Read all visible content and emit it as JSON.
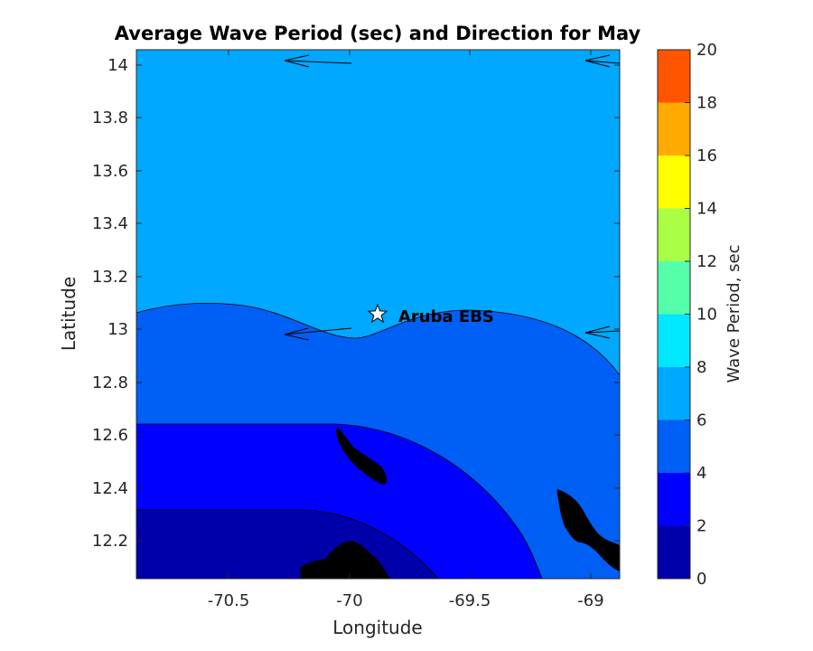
{
  "chart_data": {
    "type": "contour",
    "title": "Average Wave Period (sec) and Direction for May",
    "xlabel": "Longitude",
    "ylabel": "Latitude",
    "xlim": [
      -70.9,
      -68.9
    ],
    "ylim": [
      12.05,
      14.05
    ],
    "xticks": [
      -70.5,
      -70,
      -69.5,
      -69
    ],
    "xtick_labels": [
      "-70.5",
      "-70",
      "-69.5",
      "-69"
    ],
    "yticks": [
      12.2,
      12.4,
      12.6,
      12.8,
      13,
      13.2,
      13.4,
      13.6,
      13.8,
      14
    ],
    "ytick_labels": [
      "12.2",
      "12.4",
      "12.6",
      "12.8",
      "13",
      "13.2",
      "13.4",
      "13.6",
      "13.8",
      "14"
    ],
    "colorbar": {
      "label": "Wave Period, sec",
      "levels": [
        0,
        2,
        4,
        6,
        8,
        10,
        12,
        14,
        16,
        18,
        20
      ],
      "tick_labels": [
        "0",
        "2",
        "4",
        "6",
        "8",
        "10",
        "12",
        "14",
        "16",
        "18",
        "20"
      ],
      "colors": [
        "#0000aa",
        "#0000ff",
        "#005ff5",
        "#00a8ff",
        "#00e8ff",
        "#55ffaa",
        "#aaff44",
        "#ffff00",
        "#ffaa00",
        "#ff5500"
      ]
    },
    "regions": [
      {
        "period_band": "6-8 sec",
        "color": "#00a8ff",
        "area": "north of ~13.0 N"
      },
      {
        "period_band": "4-6 sec",
        "color": "#005ff5",
        "area": "central band"
      },
      {
        "period_band": "2-4 sec",
        "color": "#0000ff",
        "area": "south-west"
      },
      {
        "period_band": "0-2 sec",
        "color": "#0000aa",
        "area": "far south-west"
      }
    ],
    "direction_arrows": [
      {
        "lon": -70.0,
        "lat": 14.0,
        "direction": "west"
      },
      {
        "lon": -68.9,
        "lat": 14.0,
        "direction": "west"
      },
      {
        "lon": -70.0,
        "lat": 13.0,
        "direction": "west"
      },
      {
        "lon": -68.9,
        "lat": 13.0,
        "direction": "west"
      }
    ],
    "station": {
      "label": "Aruba EBS",
      "lon": -69.89,
      "lat": 13.055
    },
    "land_color": "#000000"
  }
}
